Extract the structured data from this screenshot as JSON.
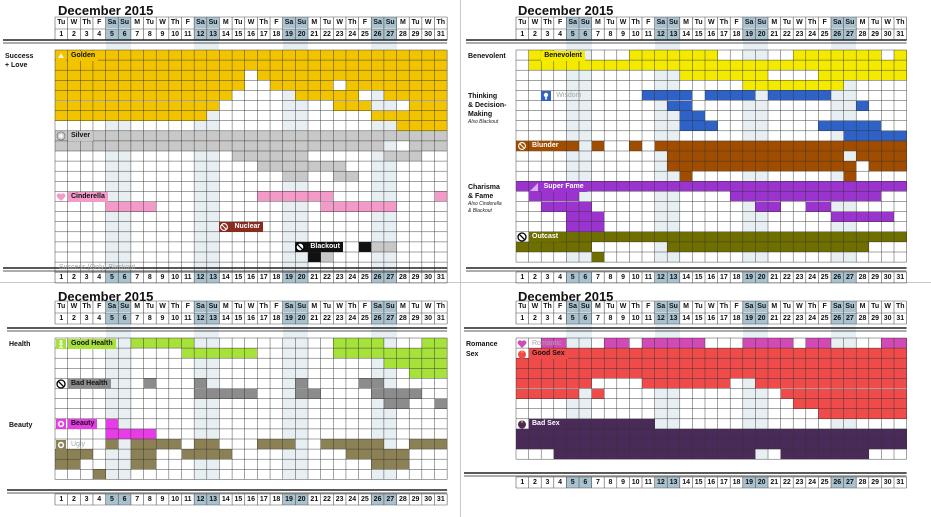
{
  "month_title": "December 2015",
  "colors": {
    "weekend_header": "#a9c2cf",
    "weekend_column": "#e7eff2",
    "golden": "#f2c400",
    "silver": "#c8c8c8",
    "cinderella": "#f49ac9",
    "nuclear": "#8a2b1f",
    "blackout": "#111111",
    "benevolent": "#f4ea00",
    "wisdom": "#2e62c6",
    "blunder": "#a14d00",
    "super_fame": "#9b34cf",
    "outcast": "#6f6f00",
    "good_health": "#a7e23a",
    "bad_health": "#8c8c8c",
    "beauty": "#e83ce6",
    "ugly": "#8c8155",
    "romantic": "#d24ab5",
    "good_sex": "#f04b4b",
    "bad_sex": "#4a2a58"
  },
  "day_headers": [
    "Tu",
    "W",
    "Th",
    "F",
    "Sa",
    "Su",
    "M",
    "Tu",
    "W",
    "Th",
    "F",
    "Sa",
    "Su",
    "M",
    "Tu",
    "W",
    "Th",
    "F",
    "Sa",
    "Su",
    "M",
    "Tu",
    "W",
    "Th",
    "F",
    "Sa",
    "Su",
    "M",
    "Tu",
    "W",
    "Th"
  ],
  "date_numbers": [
    "1",
    "2",
    "3",
    "4",
    "5",
    "6",
    "7",
    "8",
    "9",
    "10",
    "11",
    "12",
    "13",
    "14",
    "15",
    "16",
    "17",
    "18",
    "19",
    "20",
    "21",
    "22",
    "23",
    "24",
    "25",
    "26",
    "27",
    "28",
    "29",
    "30",
    "31"
  ],
  "weekend_dates": [
    5,
    6,
    12,
    13,
    19,
    20,
    26,
    27
  ],
  "panels": [
    {
      "id": "success",
      "sections": [
        {
          "label": "Success\n+ Love",
          "sub": "",
          "row": 0
        }
      ],
      "tracks": [
        {
          "name": "golden",
          "label": "Golden",
          "icon": "golden-icon",
          "color_key": "golden",
          "row": 0,
          "rows": 8,
          "faded": false
        },
        {
          "name": "silver",
          "label": "Silver",
          "icon": "silver-icon",
          "color_key": "silver",
          "row": 8,
          "rows": 6,
          "faded": false
        },
        {
          "name": "cinderella",
          "label": "Cinderella",
          "icon": "heart-icon",
          "color_key": "cinderella",
          "row": 14,
          "rows": 3,
          "faded": false
        },
        {
          "name": "nuclear",
          "label": "Nuclear",
          "icon": "nuclear-icon",
          "color_key": "nuclear",
          "row": 17,
          "rows": 2,
          "faded": false
        },
        {
          "name": "blackout",
          "label": "Blackout",
          "icon": "blackout-icon",
          "color_key": "blackout",
          "row": 19,
          "rows": 2,
          "faded": false
        },
        {
          "name": "success-only-blackout",
          "label": "Success (Only) Blackout",
          "icon": "",
          "color_key": "silver",
          "row": 21,
          "rows": 1,
          "faded": true
        }
      ]
    },
    {
      "id": "thinking",
      "sections": [
        {
          "label": "Benevolent",
          "sub": "",
          "row": 0
        },
        {
          "label": "Thinking\n& Decision-\nMaking",
          "sub": "Also Blackout",
          "row": 4
        },
        {
          "label": "Charisma\n& Fame",
          "sub": "Also Cinderella\n& Blackout",
          "row": 13
        }
      ],
      "tracks": [
        {
          "name": "benevolent",
          "label": "Benevolent",
          "icon": "",
          "color_key": "benevolent",
          "row": 0,
          "rows": 4,
          "faded": false
        },
        {
          "name": "wisdom",
          "label": "Wisdom",
          "icon": "wisdom-icon",
          "color_key": "wisdom",
          "row": 4,
          "rows": 5,
          "faded": true
        },
        {
          "name": "blunder",
          "label": "Blunder",
          "icon": "blunder-icon",
          "color_key": "blunder",
          "row": 9,
          "rows": 4,
          "faded": false
        },
        {
          "name": "super-fame",
          "label": "Super Fame",
          "icon": "fame-icon",
          "color_key": "super_fame",
          "row": 13,
          "rows": 5,
          "faded": false
        },
        {
          "name": "outcast",
          "label": "Outcast",
          "icon": "outcast-icon",
          "color_key": "outcast",
          "row": 18,
          "rows": 3,
          "faded": false
        }
      ]
    },
    {
      "id": "health",
      "sections": [
        {
          "label": "Health",
          "sub": "",
          "row": 0
        },
        {
          "label": "Beauty",
          "sub": "",
          "row": 8
        }
      ],
      "tracks": [
        {
          "name": "good-health",
          "label": "Good Health",
          "icon": "health-icon",
          "color_key": "good_health",
          "row": 0,
          "rows": 4,
          "faded": false
        },
        {
          "name": "bad-health",
          "label": "Bad Health",
          "icon": "bad-health-icon",
          "color_key": "bad_health",
          "row": 4,
          "rows": 4,
          "faded": false
        },
        {
          "name": "beauty",
          "label": "Beauty",
          "icon": "beauty-icon",
          "color_key": "beauty",
          "row": 8,
          "rows": 2,
          "faded": false
        },
        {
          "name": "ugly",
          "label": "Ugly",
          "icon": "ugly-icon",
          "color_key": "ugly",
          "row": 10,
          "rows": 4,
          "faded": true
        }
      ]
    },
    {
      "id": "romance",
      "sections": [
        {
          "label": "Romance",
          "sub": "",
          "row": 0
        },
        {
          "label": "Sex",
          "sub": "",
          "row": 1
        }
      ],
      "tracks": [
        {
          "name": "romantic",
          "label": "Romantic",
          "icon": "romance-icon",
          "color_key": "romantic",
          "row": 0,
          "rows": 1,
          "faded": true
        },
        {
          "name": "good-sex",
          "label": "Good Sex",
          "icon": "good-sex-icon",
          "color_key": "good_sex",
          "row": 1,
          "rows": 7,
          "faded": false
        },
        {
          "name": "bad-sex",
          "label": "Bad Sex",
          "icon": "bad-sex-icon",
          "color_key": "bad_sex",
          "row": 8,
          "rows": 4,
          "faded": false
        }
      ]
    }
  ],
  "bars": [
    {
      "p": 0,
      "r": 0,
      "d1": 1,
      "d2": 31,
      "c": "golden"
    },
    {
      "p": 0,
      "r": 1,
      "d1": 1,
      "d2": 31,
      "c": "golden"
    },
    {
      "p": 0,
      "r": 2,
      "d1": 1,
      "d2": 15,
      "c": "golden"
    },
    {
      "p": 0,
      "r": 2,
      "d1": 17,
      "d2": 31,
      "c": "golden"
    },
    {
      "p": 0,
      "r": 3,
      "d1": 1,
      "d2": 15,
      "c": "golden"
    },
    {
      "p": 0,
      "r": 3,
      "d1": 18,
      "d2": 22,
      "c": "golden"
    },
    {
      "p": 0,
      "r": 3,
      "d1": 24,
      "d2": 31,
      "c": "golden"
    },
    {
      "p": 0,
      "r": 4,
      "d1": 1,
      "d2": 14,
      "c": "golden"
    },
    {
      "p": 0,
      "r": 4,
      "d1": 20,
      "d2": 24,
      "c": "golden"
    },
    {
      "p": 0,
      "r": 4,
      "d1": 27,
      "d2": 31,
      "c": "golden"
    },
    {
      "p": 0,
      "r": 5,
      "d1": 1,
      "d2": 13,
      "c": "golden"
    },
    {
      "p": 0,
      "r": 5,
      "d1": 23,
      "d2": 25,
      "c": "golden"
    },
    {
      "p": 0,
      "r": 5,
      "d1": 29,
      "d2": 31,
      "c": "golden"
    },
    {
      "p": 0,
      "r": 6,
      "d1": 1,
      "d2": 12,
      "c": "golden"
    },
    {
      "p": 0,
      "r": 6,
      "d1": 26,
      "d2": 31,
      "c": "golden"
    },
    {
      "p": 0,
      "r": 7,
      "d1": 28,
      "d2": 31,
      "c": "golden"
    },
    {
      "p": 0,
      "r": 8,
      "d1": 1,
      "d2": 31,
      "c": "silver"
    },
    {
      "p": 0,
      "r": 9,
      "d1": 1,
      "d2": 26,
      "c": "silver"
    },
    {
      "p": 0,
      "r": 9,
      "d1": 29,
      "d2": 31,
      "c": "silver"
    },
    {
      "p": 0,
      "r": 10,
      "d1": 15,
      "d2": 20,
      "c": "silver"
    },
    {
      "p": 0,
      "r": 10,
      "d1": 27,
      "d2": 29,
      "c": "silver"
    },
    {
      "p": 0,
      "r": 11,
      "d1": 17,
      "d2": 23,
      "c": "silver"
    },
    {
      "p": 0,
      "r": 12,
      "d1": 19,
      "d2": 20,
      "c": "silver"
    },
    {
      "p": 0,
      "r": 12,
      "d1": 23,
      "d2": 24,
      "c": "silver"
    },
    {
      "p": 0,
      "r": 14,
      "d1": 17,
      "d2": 22,
      "c": "cinderella"
    },
    {
      "p": 0,
      "r": 14,
      "d1": 31,
      "d2": 31,
      "c": "cinderella"
    },
    {
      "p": 0,
      "r": 15,
      "d1": 5,
      "d2": 8,
      "c": "cinderella"
    },
    {
      "p": 0,
      "r": 15,
      "d1": 22,
      "d2": 27,
      "c": "cinderella"
    },
    {
      "p": 0,
      "r": 17,
      "d1": 14,
      "d2": 16,
      "c": "nuclear"
    },
    {
      "p": 0,
      "r": 19,
      "d1": 20,
      "d2": 22,
      "c": "blackout"
    },
    {
      "p": 0,
      "r": 19,
      "d1": 25,
      "d2": 25,
      "c": "blackout"
    },
    {
      "p": 0,
      "r": 19,
      "d1": 26,
      "d2": 27,
      "c": "silver"
    },
    {
      "p": 0,
      "r": 20,
      "d1": 21,
      "d2": 21,
      "c": "blackout"
    },
    {
      "p": 0,
      "r": 20,
      "d1": 22,
      "d2": 22,
      "c": "silver"
    },
    {
      "p": 1,
      "r": 0,
      "d1": 2,
      "d2": 3,
      "c": "benevolent"
    },
    {
      "p": 1,
      "r": 0,
      "d1": 10,
      "d2": 16,
      "c": "benevolent"
    },
    {
      "p": 1,
      "r": 0,
      "d1": 23,
      "d2": 29,
      "c": "benevolent"
    },
    {
      "p": 1,
      "r": 0,
      "d1": 31,
      "d2": 31,
      "c": "benevolent"
    },
    {
      "p": 1,
      "r": 1,
      "d1": 2,
      "d2": 31,
      "c": "benevolent"
    },
    {
      "p": 1,
      "r": 2,
      "d1": 14,
      "d2": 20,
      "c": "benevolent"
    },
    {
      "p": 1,
      "r": 2,
      "d1": 25,
      "d2": 31,
      "c": "benevolent"
    },
    {
      "p": 1,
      "r": 3,
      "d1": 19,
      "d2": 26,
      "c": "benevolent"
    },
    {
      "p": 1,
      "r": 4,
      "d1": 11,
      "d2": 14,
      "c": "wisdom"
    },
    {
      "p": 1,
      "r": 4,
      "d1": 16,
      "d2": 19,
      "c": "wisdom"
    },
    {
      "p": 1,
      "r": 4,
      "d1": 21,
      "d2": 25,
      "c": "wisdom"
    },
    {
      "p": 1,
      "r": 5,
      "d1": 13,
      "d2": 14,
      "c": "wisdom"
    },
    {
      "p": 1,
      "r": 5,
      "d1": 28,
      "d2": 28,
      "c": "wisdom"
    },
    {
      "p": 1,
      "r": 6,
      "d1": 14,
      "d2": 15,
      "c": "wisdom"
    },
    {
      "p": 1,
      "r": 7,
      "d1": 14,
      "d2": 16,
      "c": "wisdom"
    },
    {
      "p": 1,
      "r": 7,
      "d1": 25,
      "d2": 29,
      "c": "wisdom"
    },
    {
      "p": 1,
      "r": 8,
      "d1": 27,
      "d2": 31,
      "c": "wisdom"
    },
    {
      "p": 1,
      "r": 9,
      "d1": 1,
      "d2": 1,
      "c": "blunder"
    },
    {
      "p": 1,
      "r": 9,
      "d1": 4,
      "d2": 5,
      "c": "blunder"
    },
    {
      "p": 1,
      "r": 9,
      "d1": 7,
      "d2": 7,
      "c": "blunder"
    },
    {
      "p": 1,
      "r": 9,
      "d1": 10,
      "d2": 10,
      "c": "blunder"
    },
    {
      "p": 1,
      "r": 9,
      "d1": 12,
      "d2": 31,
      "c": "blunder"
    },
    {
      "p": 1,
      "r": 10,
      "d1": 13,
      "d2": 26,
      "c": "blunder"
    },
    {
      "p": 1,
      "r": 10,
      "d1": 28,
      "d2": 31,
      "c": "blunder"
    },
    {
      "p": 1,
      "r": 11,
      "d1": 13,
      "d2": 27,
      "c": "blunder"
    },
    {
      "p": 1,
      "r": 11,
      "d1": 29,
      "d2": 31,
      "c": "blunder"
    },
    {
      "p": 1,
      "r": 12,
      "d1": 14,
      "d2": 14,
      "c": "blunder"
    },
    {
      "p": 1,
      "r": 12,
      "d1": 27,
      "d2": 27,
      "c": "blunder"
    },
    {
      "p": 1,
      "r": 13,
      "d1": 1,
      "d2": 31,
      "c": "super_fame"
    },
    {
      "p": 1,
      "r": 14,
      "d1": 2,
      "d2": 5,
      "c": "super_fame"
    },
    {
      "p": 1,
      "r": 14,
      "d1": 18,
      "d2": 29,
      "c": "super_fame"
    },
    {
      "p": 1,
      "r": 15,
      "d1": 3,
      "d2": 6,
      "c": "super_fame"
    },
    {
      "p": 1,
      "r": 15,
      "d1": 20,
      "d2": 21,
      "c": "super_fame"
    },
    {
      "p": 1,
      "r": 15,
      "d1": 24,
      "d2": 25,
      "c": "super_fame"
    },
    {
      "p": 1,
      "r": 16,
      "d1": 5,
      "d2": 7,
      "c": "super_fame"
    },
    {
      "p": 1,
      "r": 16,
      "d1": 26,
      "d2": 30,
      "c": "super_fame"
    },
    {
      "p": 1,
      "r": 17,
      "d1": 5,
      "d2": 7,
      "c": "super_fame"
    },
    {
      "p": 1,
      "r": 18,
      "d1": 3,
      "d2": 31,
      "c": "outcast"
    },
    {
      "p": 1,
      "r": 19,
      "d1": 1,
      "d2": 6,
      "c": "outcast"
    },
    {
      "p": 1,
      "r": 19,
      "d1": 13,
      "d2": 28,
      "c": "outcast"
    },
    {
      "p": 1,
      "r": 20,
      "d1": 7,
      "d2": 7,
      "c": "outcast"
    },
    {
      "p": 2,
      "r": 0,
      "d1": 7,
      "d2": 11,
      "c": "good_health"
    },
    {
      "p": 2,
      "r": 0,
      "d1": 23,
      "d2": 26,
      "c": "good_health"
    },
    {
      "p": 2,
      "r": 0,
      "d1": 30,
      "d2": 31,
      "c": "good_health"
    },
    {
      "p": 2,
      "r": 1,
      "d1": 11,
      "d2": 16,
      "c": "good_health"
    },
    {
      "p": 2,
      "r": 1,
      "d1": 23,
      "d2": 31,
      "c": "good_health"
    },
    {
      "p": 2,
      "r": 2,
      "d1": 27,
      "d2": 31,
      "c": "good_health"
    },
    {
      "p": 2,
      "r": 3,
      "d1": 29,
      "d2": 31,
      "c": "good_health"
    },
    {
      "p": 2,
      "r": 4,
      "d1": 8,
      "d2": 8,
      "c": "bad_health"
    },
    {
      "p": 2,
      "r": 4,
      "d1": 12,
      "d2": 12,
      "c": "bad_health"
    },
    {
      "p": 2,
      "r": 4,
      "d1": 20,
      "d2": 20,
      "c": "bad_health"
    },
    {
      "p": 2,
      "r": 4,
      "d1": 25,
      "d2": 26,
      "c": "bad_health"
    },
    {
      "p": 2,
      "r": 5,
      "d1": 12,
      "d2": 16,
      "c": "bad_health"
    },
    {
      "p": 2,
      "r": 5,
      "d1": 20,
      "d2": 21,
      "c": "bad_health"
    },
    {
      "p": 2,
      "r": 5,
      "d1": 26,
      "d2": 29,
      "c": "bad_health"
    },
    {
      "p": 2,
      "r": 6,
      "d1": 27,
      "d2": 28,
      "c": "bad_health"
    },
    {
      "p": 2,
      "r": 6,
      "d1": 31,
      "d2": 31,
      "c": "bad_health"
    },
    {
      "p": 2,
      "r": 8,
      "d1": 5,
      "d2": 5,
      "c": "beauty"
    },
    {
      "p": 2,
      "r": 9,
      "d1": 5,
      "d2": 8,
      "c": "beauty"
    },
    {
      "p": 2,
      "r": 10,
      "d1": 5,
      "d2": 5,
      "c": "ugly"
    },
    {
      "p": 2,
      "r": 10,
      "d1": 7,
      "d2": 10,
      "c": "ugly"
    },
    {
      "p": 2,
      "r": 10,
      "d1": 12,
      "d2": 13,
      "c": "ugly"
    },
    {
      "p": 2,
      "r": 10,
      "d1": 17,
      "d2": 19,
      "c": "ugly"
    },
    {
      "p": 2,
      "r": 10,
      "d1": 22,
      "d2": 26,
      "c": "ugly"
    },
    {
      "p": 2,
      "r": 10,
      "d1": 29,
      "d2": 31,
      "c": "ugly"
    },
    {
      "p": 2,
      "r": 11,
      "d1": 1,
      "d2": 3,
      "c": "ugly"
    },
    {
      "p": 2,
      "r": 11,
      "d1": 7,
      "d2": 8,
      "c": "ugly"
    },
    {
      "p": 2,
      "r": 11,
      "d1": 11,
      "d2": 14,
      "c": "ugly"
    },
    {
      "p": 2,
      "r": 11,
      "d1": 24,
      "d2": 28,
      "c": "ugly"
    },
    {
      "p": 2,
      "r": 12,
      "d1": 1,
      "d2": 2,
      "c": "ugly"
    },
    {
      "p": 2,
      "r": 12,
      "d1": 7,
      "d2": 8,
      "c": "ugly"
    },
    {
      "p": 2,
      "r": 12,
      "d1": 26,
      "d2": 28,
      "c": "ugly"
    },
    {
      "p": 2,
      "r": 13,
      "d1": 4,
      "d2": 4,
      "c": "ugly"
    },
    {
      "p": 3,
      "r": 0,
      "d1": 3,
      "d2": 4,
      "c": "romantic"
    },
    {
      "p": 3,
      "r": 0,
      "d1": 8,
      "d2": 9,
      "c": "romantic"
    },
    {
      "p": 3,
      "r": 0,
      "d1": 11,
      "d2": 15,
      "c": "romantic"
    },
    {
      "p": 3,
      "r": 0,
      "d1": 19,
      "d2": 22,
      "c": "romantic"
    },
    {
      "p": 3,
      "r": 0,
      "d1": 24,
      "d2": 25,
      "c": "romantic"
    },
    {
      "p": 3,
      "r": 0,
      "d1": 30,
      "d2": 31,
      "c": "romantic"
    },
    {
      "p": 3,
      "r": 1,
      "d1": 2,
      "d2": 31,
      "c": "good_sex"
    },
    {
      "p": 3,
      "r": 2,
      "d1": 1,
      "d2": 31,
      "c": "good_sex"
    },
    {
      "p": 3,
      "r": 3,
      "d1": 1,
      "d2": 31,
      "c": "good_sex"
    },
    {
      "p": 3,
      "r": 4,
      "d1": 1,
      "d2": 6,
      "c": "good_sex"
    },
    {
      "p": 3,
      "r": 4,
      "d1": 11,
      "d2": 17,
      "c": "good_sex"
    },
    {
      "p": 3,
      "r": 4,
      "d1": 20,
      "d2": 31,
      "c": "good_sex"
    },
    {
      "p": 3,
      "r": 5,
      "d1": 1,
      "d2": 5,
      "c": "good_sex"
    },
    {
      "p": 3,
      "r": 5,
      "d1": 7,
      "d2": 7,
      "c": "good_sex"
    },
    {
      "p": 3,
      "r": 5,
      "d1": 22,
      "d2": 31,
      "c": "good_sex"
    },
    {
      "p": 3,
      "r": 6,
      "d1": 23,
      "d2": 31,
      "c": "good_sex"
    },
    {
      "p": 3,
      "r": 7,
      "d1": 25,
      "d2": 31,
      "c": "good_sex"
    },
    {
      "p": 3,
      "r": 8,
      "d1": 2,
      "d2": 11,
      "c": "bad_sex"
    },
    {
      "p": 3,
      "r": 9,
      "d1": 1,
      "d2": 31,
      "c": "bad_sex"
    },
    {
      "p": 3,
      "r": 10,
      "d1": 1,
      "d2": 31,
      "c": "bad_sex"
    },
    {
      "p": 3,
      "r": 11,
      "d1": 4,
      "d2": 19,
      "c": "bad_sex"
    },
    {
      "p": 3,
      "r": 11,
      "d1": 22,
      "d2": 28,
      "c": "bad_sex"
    }
  ]
}
